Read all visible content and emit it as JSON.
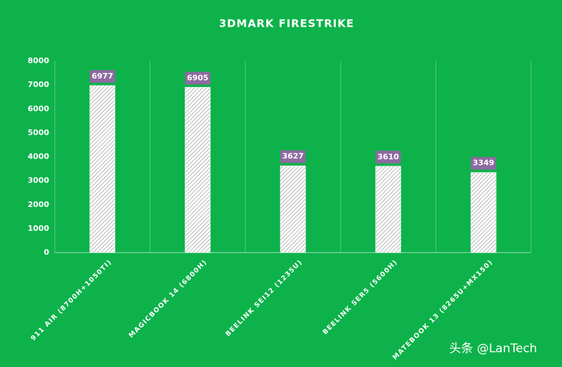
{
  "chart_data": {
    "type": "bar",
    "title": "3DMARK FIRESTRIKE",
    "categories": [
      "911 AIR (8700H+1050TI)",
      "MAGICBOOK 14 (6800H)",
      "BEELINK SEI12 (1235U)",
      "BEELINK SER5 (5600H)",
      "MATEBOOK 13 (8265U+MX150)"
    ],
    "values": [
      6977,
      6905,
      3627,
      3610,
      3349
    ],
    "color": "#ffffff",
    "label_color": "#8e6aa0",
    "background": "#0db24a",
    "ylim": [
      0,
      8000
    ],
    "yticks": [
      0,
      1000,
      2000,
      3000,
      4000,
      5000,
      6000,
      7000,
      8000
    ],
    "grid": true
  },
  "watermark": "头条 @LanTech"
}
